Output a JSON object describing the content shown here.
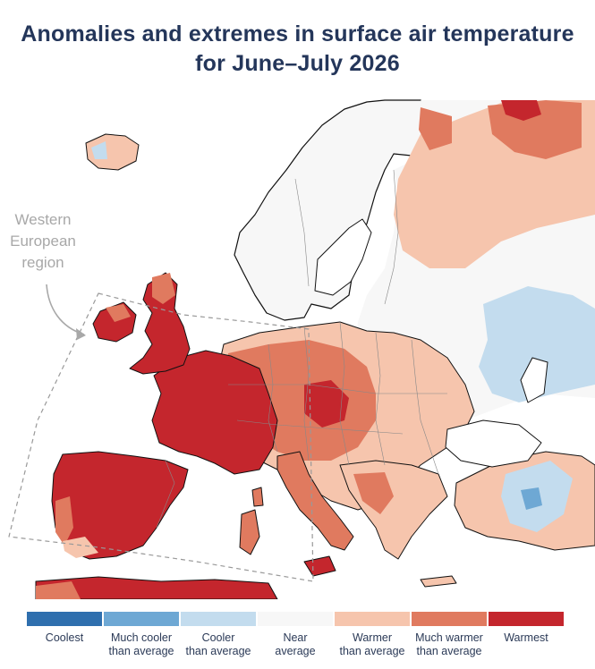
{
  "title": {
    "line1": "Anomalies and extremes in surface air temperature",
    "line2": "for June–July 2026"
  },
  "annotation": {
    "line1": "Western",
    "line2": "European",
    "line3": "region"
  },
  "legend": [
    {
      "line1": "Coolest",
      "line2": "",
      "color": "#2f6fae"
    },
    {
      "line1": "Much cooler",
      "line2": "than average",
      "color": "#6ea8d4"
    },
    {
      "line1": "Cooler",
      "line2": "than average",
      "color": "#c3dcee"
    },
    {
      "line1": "Near",
      "line2": "average",
      "color": "#f7f7f7"
    },
    {
      "line1": "Warmer",
      "line2": "than average",
      "color": "#f6c5ad"
    },
    {
      "line1": "Much warmer",
      "line2": "than average",
      "color": "#e07a5f"
    },
    {
      "line1": "Warmest",
      "line2": "",
      "color": "#c4262d"
    }
  ]
}
